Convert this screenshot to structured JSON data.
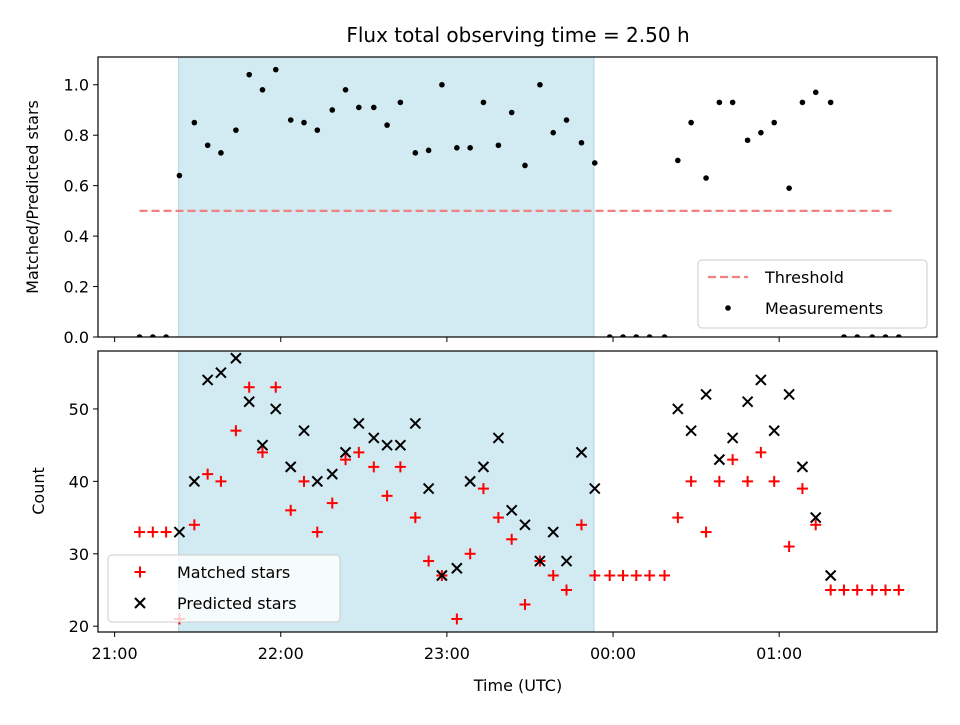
{
  "chart_data": {
    "type": "scatter",
    "title": "Flux total observing time = 2.50 h",
    "xlabel": "Time (UTC)",
    "x_ticks": [
      "21:00",
      "22:00",
      "23:00",
      "00:00",
      "01:00"
    ],
    "x_tick_hours": [
      21,
      22,
      23,
      24,
      25
    ],
    "x_range_hours": [
      20.9,
      25.95
    ],
    "shaded_interval_hours": [
      21.385,
      23.885
    ],
    "shaded_color": "#add8e6",
    "panels": [
      {
        "id": "ratio",
        "ylabel": "Matched/Predicted stars",
        "ylim": [
          0,
          1.11
        ],
        "y_ticks": [
          "0.0",
          "0.2",
          "0.4",
          "0.6",
          "0.8",
          "1.0"
        ],
        "y_tick_values": [
          0,
          0.2,
          0.4,
          0.6,
          0.8,
          1.0
        ],
        "legend": {
          "position": "lower right",
          "entries": [
            "Threshold",
            "Measurements"
          ]
        },
        "threshold": {
          "name": "Threshold",
          "y": 0.5,
          "x_start": 21.15,
          "x_end": 25.7,
          "color": "#f08080",
          "style": "dashed"
        },
        "series": [
          {
            "name": "Measurements",
            "marker": "dot",
            "color": "#000000",
            "x": [
              21.15,
              21.23,
              21.31,
              21.39,
              21.48,
              21.56,
              21.64,
              21.73,
              21.81,
              21.89,
              21.97,
              22.06,
              22.14,
              22.22,
              22.31,
              22.39,
              22.47,
              22.56,
              22.64,
              22.72,
              22.81,
              22.89,
              22.97,
              23.06,
              23.14,
              23.22,
              23.31,
              23.39,
              23.47,
              23.56,
              23.64,
              23.72,
              23.81,
              23.89,
              23.98,
              24.06,
              24.14,
              24.22,
              24.31,
              24.39,
              24.47,
              24.56,
              24.64,
              24.72,
              24.81,
              24.89,
              24.97,
              25.06,
              25.14,
              25.22,
              25.31,
              25.39,
              25.47,
              25.56,
              25.64,
              25.72
            ],
            "y": [
              0,
              0,
              0,
              0.64,
              0.85,
              0.76,
              0.73,
              0.82,
              1.04,
              0.98,
              1.06,
              0.86,
              0.85,
              0.82,
              0.9,
              0.98,
              0.91,
              0.91,
              0.84,
              0.93,
              0.73,
              0.74,
              1.0,
              0.75,
              0.75,
              0.93,
              0.76,
              0.89,
              0.68,
              1.0,
              0.81,
              0.86,
              0.77,
              0.69,
              0,
              0,
              0,
              0,
              0,
              0.7,
              0.85,
              0.63,
              0.93,
              0.93,
              0.78,
              0.81,
              0.85,
              0.59,
              0.93,
              0.97,
              0.93,
              0,
              0,
              0,
              0,
              0
            ]
          }
        ]
      },
      {
        "id": "count",
        "ylabel": "Count",
        "ylim": [
          19.2,
          58.0
        ],
        "y_ticks": [
          "20",
          "30",
          "40",
          "50"
        ],
        "y_tick_values": [
          20,
          30,
          40,
          50
        ],
        "legend": {
          "position": "lower left",
          "entries": [
            "Matched stars",
            "Predicted stars"
          ]
        },
        "series": [
          {
            "name": "Matched stars",
            "marker": "plus",
            "color": "#ff0000",
            "x": [
              21.15,
              21.23,
              21.31,
              21.39,
              21.48,
              21.56,
              21.64,
              21.73,
              21.81,
              21.89,
              21.97,
              22.06,
              22.14,
              22.22,
              22.31,
              22.39,
              22.47,
              22.56,
              22.64,
              22.72,
              22.81,
              22.89,
              22.97,
              23.06,
              23.14,
              23.22,
              23.31,
              23.39,
              23.47,
              23.56,
              23.64,
              23.72,
              23.81,
              23.89,
              23.98,
              24.06,
              24.14,
              24.22,
              24.31,
              24.39,
              24.47,
              24.56,
              24.64,
              24.72,
              24.81,
              24.89,
              24.97,
              25.06,
              25.14,
              25.22,
              25.31,
              25.39,
              25.47,
              25.56,
              25.64,
              25.72
            ],
            "y": [
              33,
              33,
              33,
              21,
              34,
              41,
              40,
              47,
              53,
              44,
              53,
              36,
              40,
              33,
              37,
              43,
              44,
              42,
              38,
              42,
              35,
              29,
              27,
              21,
              30,
              39,
              35,
              32,
              23,
              29,
              27,
              25,
              34,
              27,
              27,
              27,
              27,
              27,
              27,
              35,
              40,
              33,
              40,
              43,
              40,
              44,
              40,
              31,
              39,
              34,
              25,
              25,
              25,
              25,
              25,
              25
            ]
          },
          {
            "name": "Predicted stars",
            "marker": "x",
            "color": "#000000",
            "x": [
              21.39,
              21.48,
              21.56,
              21.64,
              21.73,
              21.81,
              21.89,
              21.97,
              22.06,
              22.14,
              22.22,
              22.31,
              22.39,
              22.47,
              22.56,
              22.64,
              22.72,
              22.81,
              22.89,
              22.97,
              23.06,
              23.14,
              23.22,
              23.31,
              23.39,
              23.47,
              23.56,
              23.64,
              23.72,
              23.81,
              23.89,
              24.39,
              24.47,
              24.56,
              24.64,
              24.72,
              24.81,
              24.89,
              24.97,
              25.06,
              25.14,
              25.22,
              25.31
            ],
            "y": [
              33,
              40,
              54,
              55,
              57,
              51,
              45,
              50,
              42,
              47,
              40,
              41,
              44,
              48,
              46,
              45,
              45,
              48,
              39,
              27,
              28,
              40,
              42,
              46,
              36,
              34,
              29,
              33,
              29,
              44,
              39,
              50,
              47,
              52,
              43,
              46,
              51,
              54,
              47,
              52,
              42,
              35,
              27
            ]
          }
        ]
      }
    ]
  }
}
